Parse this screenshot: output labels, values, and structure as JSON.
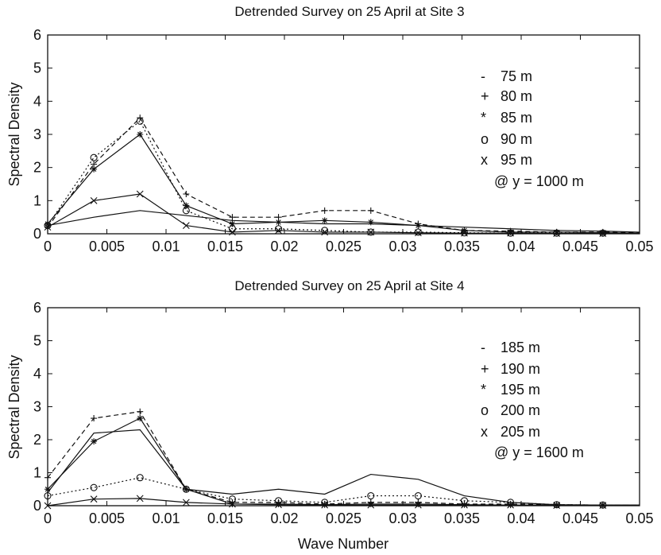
{
  "chart_data": [
    {
      "type": "line",
      "title": "Detrended Survey on 25 April at Site 3",
      "xlabel": "",
      "ylabel": "Spectral Density",
      "xlim": [
        0,
        0.05
      ],
      "ylim": [
        0,
        6
      ],
      "xticks": [
        "0",
        "0.005",
        "0.01",
        "0.015",
        "0.02",
        "0.025",
        "0.03",
        "0.035",
        "0.04",
        "0.045",
        "0.05"
      ],
      "yticks": [
        "0",
        "1",
        "2",
        "3",
        "4",
        "5",
        "6"
      ],
      "x": [
        0,
        0.0039,
        0.0078,
        0.0117,
        0.0156,
        0.0195,
        0.0234,
        0.0273,
        0.0313,
        0.0352,
        0.0391,
        0.043,
        0.0469,
        0.05
      ],
      "legend_note": "@ y = 1000 m",
      "legend_position": "right",
      "series": [
        {
          "name": "75 m",
          "marker": "-",
          "dash": "",
          "values": [
            0.25,
            0.5,
            0.7,
            0.55,
            0.4,
            0.35,
            0.3,
            0.3,
            0.25,
            0.2,
            0.15,
            0.1,
            0.08,
            0.05
          ]
        },
        {
          "name": "80 m",
          "marker": "+",
          "dash": "6,4",
          "values": [
            0.2,
            2.1,
            3.5,
            1.2,
            0.5,
            0.5,
            0.7,
            0.7,
            0.3,
            0.1,
            0.08,
            0.05,
            0.05,
            0.03
          ]
        },
        {
          "name": "85 m",
          "marker": "*",
          "dash": "",
          "values": [
            0.3,
            1.95,
            3.0,
            0.85,
            0.3,
            0.35,
            0.4,
            0.35,
            0.25,
            0.1,
            0.05,
            0.05,
            0.03,
            0.02
          ]
        },
        {
          "name": "90 m",
          "marker": "o",
          "dash": "2,3",
          "values": [
            0.25,
            2.3,
            3.4,
            0.7,
            0.15,
            0.15,
            0.1,
            0.05,
            0.05,
            0.03,
            0.02,
            0.02,
            0.02,
            0.01
          ]
        },
        {
          "name": "95 m",
          "marker": "x",
          "dash": "",
          "values": [
            0.2,
            1.0,
            1.2,
            0.25,
            0.05,
            0.1,
            0.05,
            0.05,
            0.03,
            0.02,
            0.02,
            0.01,
            0.01,
            0.01
          ]
        }
      ]
    },
    {
      "type": "line",
      "title": "Detrended Survey on 25 April at Site 4",
      "xlabel": "Wave Number",
      "ylabel": "Spectral Density",
      "xlim": [
        0,
        0.05
      ],
      "ylim": [
        0,
        6
      ],
      "xticks": [
        "0",
        "0.005",
        "0.01",
        "0.015",
        "0.02",
        "0.025",
        "0.03",
        "0.035",
        "0.04",
        "0.045",
        "0.05"
      ],
      "yticks": [
        "0",
        "1",
        "2",
        "3",
        "4",
        "5",
        "6"
      ],
      "x": [
        0,
        0.0039,
        0.0078,
        0.0117,
        0.0156,
        0.0195,
        0.0234,
        0.0273,
        0.0313,
        0.0352,
        0.0391,
        0.043,
        0.0469,
        0.05
      ],
      "legend_note": "@ y = 1600 m",
      "legend_position": "right",
      "series": [
        {
          "name": "185 m",
          "marker": "-",
          "dash": "",
          "values": [
            0.4,
            2.2,
            2.3,
            0.5,
            0.35,
            0.5,
            0.35,
            0.95,
            0.8,
            0.3,
            0.1,
            0.03,
            0.02,
            0.02
          ]
        },
        {
          "name": "190 m",
          "marker": "+",
          "dash": "6,4",
          "values": [
            0.85,
            2.65,
            2.85,
            0.5,
            0.1,
            0.1,
            0.05,
            0.1,
            0.1,
            0.05,
            0.05,
            0.03,
            0.02,
            0.02
          ]
        },
        {
          "name": "195 m",
          "marker": "*",
          "dash": "",
          "values": [
            0.5,
            1.95,
            2.65,
            0.5,
            0.05,
            0.05,
            0.03,
            0.05,
            0.05,
            0.03,
            0.02,
            0.02,
            0.02,
            0.02
          ]
        },
        {
          "name": "200 m",
          "marker": "o",
          "dash": "2,3",
          "values": [
            0.3,
            0.55,
            0.85,
            0.5,
            0.2,
            0.15,
            0.1,
            0.3,
            0.3,
            0.15,
            0.1,
            0.03,
            0.02,
            0.02
          ]
        },
        {
          "name": "205 m",
          "marker": "x",
          "dash": "",
          "values": [
            0.0,
            0.2,
            0.22,
            0.1,
            0.05,
            0.03,
            0.02,
            0.02,
            0.02,
            0.02,
            0.02,
            0.01,
            0.01,
            0.01
          ]
        }
      ]
    }
  ]
}
